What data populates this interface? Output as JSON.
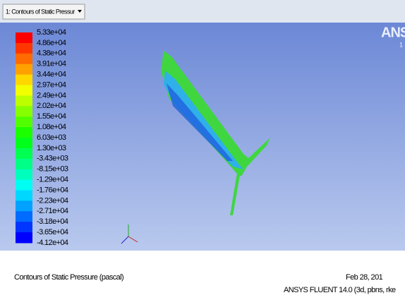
{
  "toolbar": {
    "dropdown": "1: Contours of Static Pressur"
  },
  "viewport": {
    "logo": "ANSYS",
    "logo_sub": "1",
    "legend": {
      "labels": [
        "5.33e+04",
        "4.86e+04",
        "4.38e+04",
        "3.91e+04",
        "3.44e+04",
        "2.97e+04",
        "2.49e+04",
        "2.02e+04",
        "1.55e+04",
        "1.08e+04",
        "6.03e+03",
        "1.30e+03",
        "-3.43e+03",
        "-8.15e+03",
        "-1.29e+04",
        "-1.76e+04",
        "-2.23e+04",
        "-2.71e+04",
        "-3.18e+04",
        "-3.65e+04",
        "-4.12e+04"
      ]
    }
  },
  "footer": {
    "title": "Contours of Static Pressure (pascal)",
    "date": "Feb 28, 201",
    "version": "ANSYS FLUENT 14.0 (3d, pbns, rke"
  }
}
